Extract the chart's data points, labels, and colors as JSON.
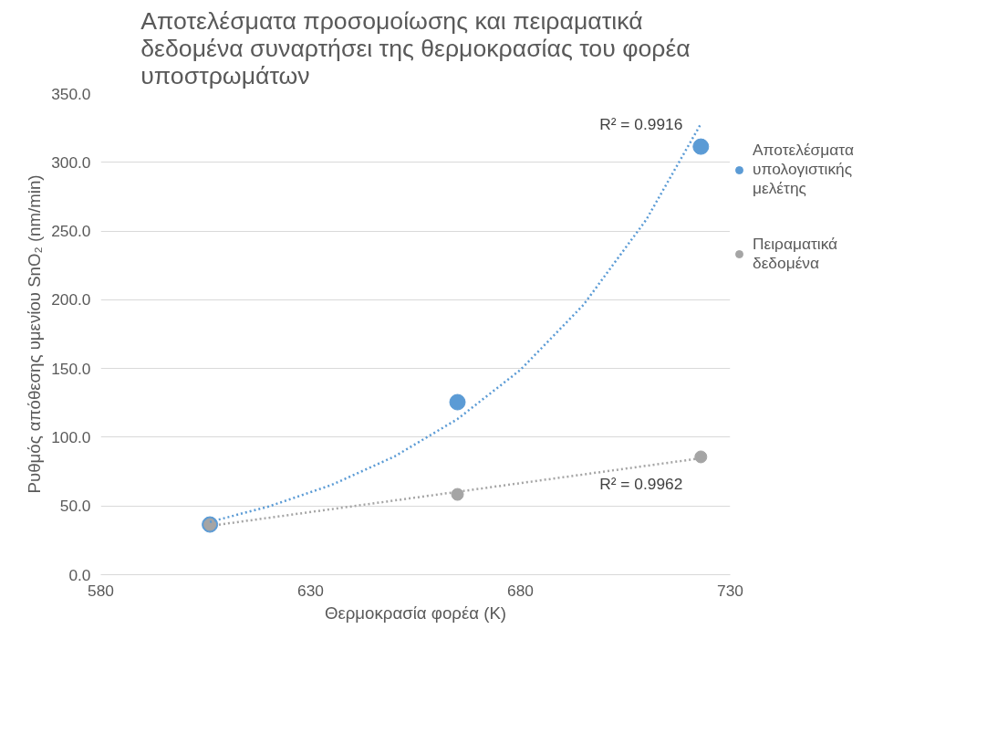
{
  "chart_data": {
    "type": "scatter",
    "title": "Αποτελέσματα προσομοίωσης και πειραματικά δεδομένα συναρτήσει της θερμοκρασίας του φορέα υποστρωμάτων",
    "xlabel": "Θερμοκρασία φορέα (K)",
    "ylabel": "Ρυθμός απόθεσης υμενίου SnO₂ (nm/min)",
    "x": [
      606,
      665,
      723
    ],
    "series": [
      {
        "name": "Αποτελέσματα υπολογιστικής μελέτης",
        "color": "#5b9bd5",
        "values": [
          36.5,
          125.5,
          311.4
        ],
        "marker": "circle"
      },
      {
        "name": "Πειραματικά δεδομένα",
        "color": "#a5a5a5",
        "values": [
          36.5,
          58.4,
          85.7
        ],
        "marker": "circle"
      },
      {
        "type": "line",
        "color": "#5b9bd5",
        "line_style": "dotted",
        "marker": "none",
        "x": [
          606,
          620,
          635,
          650,
          665,
          680,
          695,
          710,
          723
        ],
        "values": [
          38.4,
          49.6,
          65.3,
          86.0,
          113.2,
          149.0,
          196.2,
          258.3,
          328.0
        ]
      },
      {
        "type": "line",
        "color": "#a5a5a5",
        "line_style": "dotted",
        "marker": "none",
        "x": [
          606,
          723
        ],
        "values": [
          35.5,
          84.7
        ]
      }
    ],
    "annotations": [
      "R² = 0.9916",
      "R² = 0.9962"
    ],
    "xlim": [
      580,
      730
    ],
    "xticks": [
      580,
      630,
      680,
      730
    ],
    "ylim": [
      0,
      350
    ],
    "yticks": [
      {
        "value": 0,
        "label": "0.0"
      },
      {
        "value": 50,
        "label": "50.0"
      },
      {
        "value": 100,
        "label": "100.0"
      },
      {
        "value": 150,
        "label": "150.0"
      },
      {
        "value": 200,
        "label": "200.0"
      },
      {
        "value": 250,
        "label": "250.0"
      },
      {
        "value": 300,
        "label": "300.0"
      },
      {
        "value": 350,
        "label": "350.0"
      }
    ],
    "grid": "y",
    "legend": "right"
  }
}
